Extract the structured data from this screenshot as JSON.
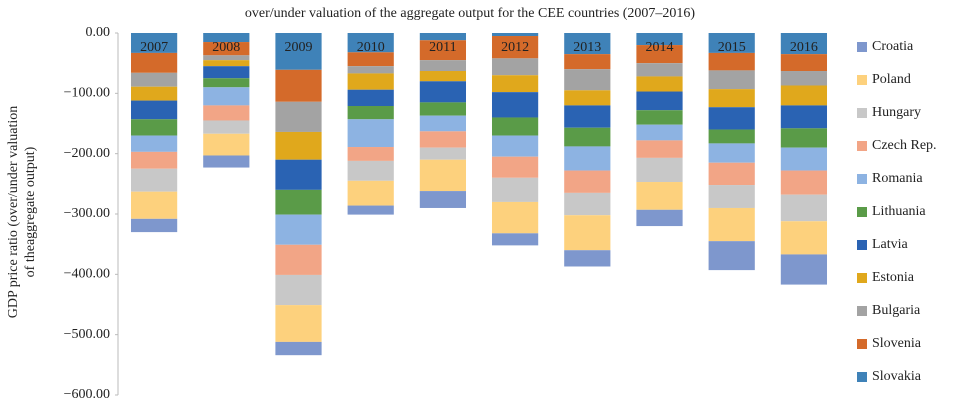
{
  "chart_data": {
    "type": "stacked_bar",
    "title": "over/under valuation of the aggregate output for the CEE countries (2007–2016)",
    "y_label": [
      "GDP price ratio (over/under valuation",
      "of theaggregate output)"
    ],
    "categories": [
      "2007",
      "2008",
      "2009",
      "2010",
      "2011",
      "2012",
      "2013",
      "2014",
      "2015",
      "2016"
    ],
    "ylim": [
      -600,
      0
    ],
    "yticks": [
      {
        "value": 0,
        "label": "0.00"
      },
      {
        "value": -100,
        "label": "−100.00"
      },
      {
        "value": -200,
        "label": "−200.00"
      },
      {
        "value": -300,
        "label": "−300.00"
      },
      {
        "value": -400,
        "label": "−400.00"
      },
      {
        "value": -500,
        "label": "−500.00"
      },
      {
        "value": -600,
        "label": "−600.00"
      }
    ],
    "grid": false,
    "legend": "right",
    "series": [
      {
        "name": "Croatia",
        "color": "#7e97cd",
        "values": [
          -22,
          -20,
          -22,
          -15,
          -28,
          -20,
          -27,
          -27,
          -48,
          -50
        ]
      },
      {
        "name": "Poland",
        "color": "#fdd17d",
        "values": [
          -45,
          -36,
          -61,
          -41,
          -52,
          -52,
          -58,
          -46,
          -55,
          -55
        ]
      },
      {
        "name": "Hungary",
        "color": "#c8c8c8",
        "values": [
          -38,
          -22,
          -50,
          -33,
          -20,
          -40,
          -37,
          -40,
          -38,
          -44
        ]
      },
      {
        "name": "Czech Rep.",
        "color": "#f2a586",
        "values": [
          -28,
          -25,
          -50,
          -23,
          -27,
          -35,
          -37,
          -29,
          -37,
          -40
        ]
      },
      {
        "name": "Romania",
        "color": "#8db3e2",
        "values": [
          -27,
          -30,
          -50,
          -46,
          -26,
          -35,
          -40,
          -26,
          -32,
          -38
        ]
      },
      {
        "name": "Lithuania",
        "color": "#5a9b48",
        "values": [
          -27,
          -15,
          -41,
          -22,
          -22,
          -30,
          -31,
          -24,
          -23,
          -32
        ]
      },
      {
        "name": "Latvia",
        "color": "#2a63b3",
        "values": [
          -31,
          -20,
          -50,
          -27,
          -35,
          -42,
          -37,
          -31,
          -37,
          -38
        ]
      },
      {
        "name": "Estonia",
        "color": "#e0a81c",
        "values": [
          -23,
          -10,
          -46,
          -27,
          -17,
          -28,
          -25,
          -25,
          -30,
          -33
        ]
      },
      {
        "name": "Bulgaria",
        "color": "#a3a3a3",
        "values": [
          -23,
          -8,
          -50,
          -12,
          -18,
          -28,
          -35,
          -22,
          -31,
          -24
        ]
      },
      {
        "name": "Slovenia",
        "color": "#d46a2a",
        "values": [
          -33,
          -22,
          -53,
          -23,
          -33,
          -37,
          -25,
          -30,
          -29,
          -28
        ]
      },
      {
        "name": "Slovakia",
        "color": "#3f82b8",
        "values": [
          -33,
          -15,
          -61,
          -32,
          -12,
          -5,
          -35,
          -20,
          -33,
          -35
        ]
      }
    ]
  }
}
